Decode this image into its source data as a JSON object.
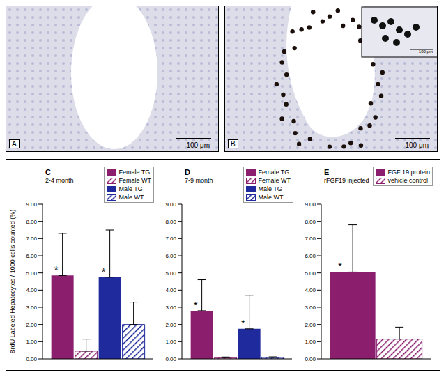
{
  "images": [
    {
      "label": "A",
      "scale_bar": "100 μm"
    },
    {
      "label": "B",
      "scale_bar": "100 μm",
      "inset_scale_bar": "100 μm"
    }
  ],
  "chart_data": [
    {
      "type": "bar",
      "label": "C",
      "title": "2-4 month",
      "ylabel": "BrdU Labeled Hepatocytes / 1000 cells counted (%)",
      "categories": [
        null
      ],
      "series": [
        {
          "name": "Female TG",
          "color": "#8b1f6e",
          "line_style": "solid",
          "values": [
            4.85
          ],
          "errors": [
            2.45
          ]
        },
        {
          "name": "Female WT",
          "color": "#8b1f6e",
          "line_style": "hatched",
          "values": [
            0.45
          ],
          "errors": [
            0.7
          ]
        },
        {
          "name": "Male TG",
          "color": "#1f2a9c",
          "line_style": "solid",
          "values": [
            4.75
          ],
          "errors": [
            2.75
          ]
        },
        {
          "name": "Male WT",
          "color": "#1f2a9c",
          "line_style": "hatched",
          "values": [
            2.0
          ],
          "errors": [
            1.3
          ]
        }
      ],
      "annotations": [
        {
          "text": "*",
          "series": "Female TG"
        },
        {
          "text": "*",
          "series": "Male TG"
        }
      ],
      "ylim": [
        0,
        9
      ],
      "yticks": [
        {
          "value": 0,
          "label": "0.00"
        },
        {
          "value": 1,
          "label": "1.00"
        },
        {
          "value": 2,
          "label": "2.00"
        },
        {
          "value": 3,
          "label": "3.00"
        },
        {
          "value": 4,
          "label": "4.00"
        },
        {
          "value": 5,
          "label": "5.00"
        },
        {
          "value": 6,
          "label": "6.00"
        },
        {
          "value": 7,
          "label": "7.00"
        },
        {
          "value": 8,
          "label": "8.00"
        },
        {
          "value": 9,
          "label": "9.00"
        }
      ],
      "tick_labels": "y",
      "legend": "top right"
    },
    {
      "type": "bar",
      "label": "D",
      "title": "7-9 month",
      "categories": [
        null
      ],
      "series": [
        {
          "name": "Female TG",
          "color": "#8b1f6e",
          "line_style": "solid",
          "values": [
            2.8
          ],
          "errors": [
            1.8
          ]
        },
        {
          "name": "Female WT",
          "color": "#8b1f6e",
          "line_style": "hatched",
          "values": [
            0.07
          ],
          "errors": [
            0.04
          ]
        },
        {
          "name": "Male TG",
          "color": "#1f2a9c",
          "line_style": "solid",
          "values": [
            1.75
          ],
          "errors": [
            1.95
          ]
        },
        {
          "name": "Male WT",
          "color": "#1f2a9c",
          "line_style": "hatched",
          "values": [
            0.08
          ],
          "errors": [
            0.04
          ]
        }
      ],
      "annotations": [
        {
          "text": "*",
          "series": "Female TG"
        },
        {
          "text": "*",
          "series": "Male TG"
        }
      ],
      "ylim": [
        0,
        9
      ],
      "yticks": [
        {
          "value": 0,
          "label": "0.00"
        },
        {
          "value": 1,
          "label": "1.00"
        },
        {
          "value": 2,
          "label": "2.00"
        },
        {
          "value": 3,
          "label": "3.00"
        },
        {
          "value": 4,
          "label": "4.00"
        },
        {
          "value": 5,
          "label": "5.00"
        },
        {
          "value": 6,
          "label": "6.00"
        },
        {
          "value": 7,
          "label": "7.00"
        },
        {
          "value": 8,
          "label": "8.00"
        },
        {
          "value": 9,
          "label": "9.00"
        }
      ],
      "tick_labels": "y",
      "legend": "top right"
    },
    {
      "type": "bar",
      "label": "E",
      "title": "rFGF19 injected",
      "categories": [
        null
      ],
      "series": [
        {
          "name": "FGF 19 protein",
          "color": "#8b1f6e",
          "line_style": "solid",
          "values": [
            5.05
          ],
          "errors": [
            2.75
          ]
        },
        {
          "name": "vehicle control",
          "color": "#8b1f6e",
          "line_style": "hatched",
          "values": [
            1.15
          ],
          "errors": [
            0.7
          ]
        }
      ],
      "annotations": [
        {
          "text": "*",
          "series": "FGF 19 protein"
        }
      ],
      "ylim": [
        0,
        9
      ],
      "yticks": [
        {
          "value": 0,
          "label": "0.00"
        },
        {
          "value": 1,
          "label": "1.00"
        },
        {
          "value": 2,
          "label": "2.00"
        },
        {
          "value": 3,
          "label": "3.00"
        },
        {
          "value": 4,
          "label": "4.00"
        },
        {
          "value": 5,
          "label": "5.00"
        },
        {
          "value": 6,
          "label": "6.00"
        },
        {
          "value": 7,
          "label": "7.00"
        },
        {
          "value": 8,
          "label": "8.00"
        },
        {
          "value": 9,
          "label": "9.00"
        }
      ],
      "tick_labels": "y",
      "legend": "top right"
    }
  ]
}
